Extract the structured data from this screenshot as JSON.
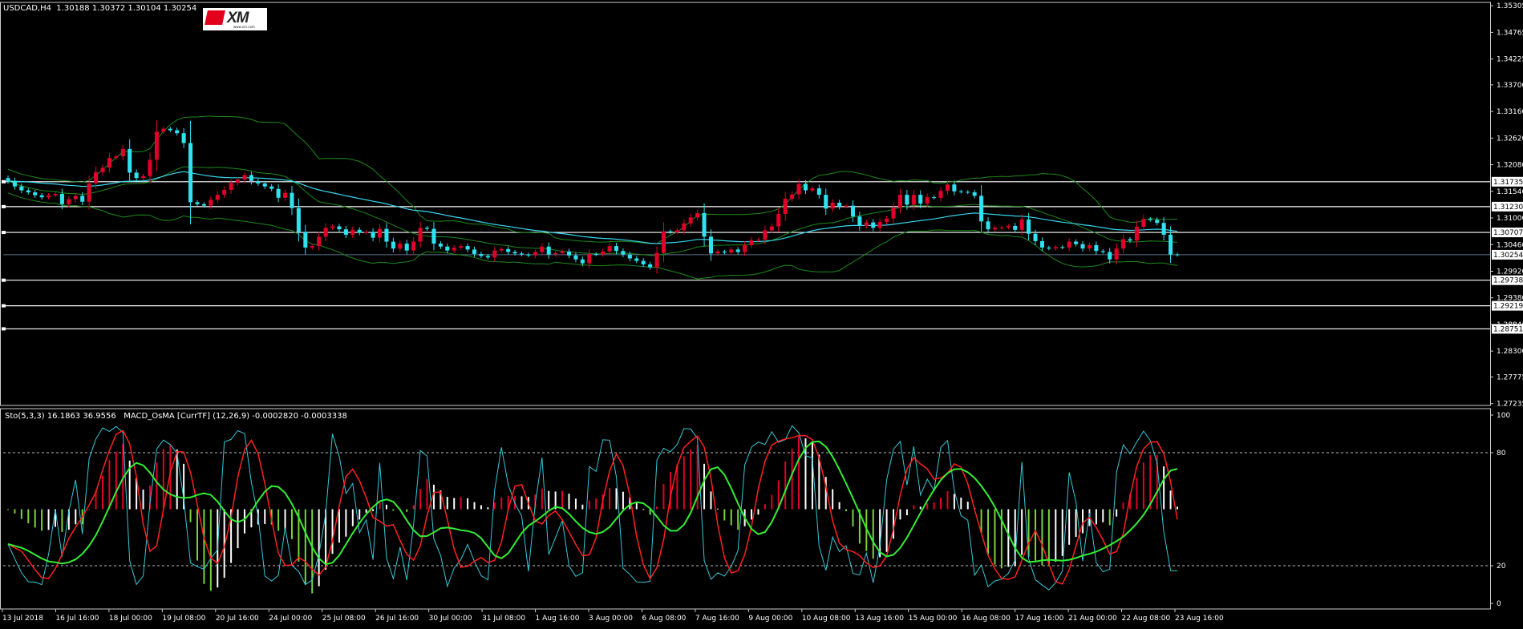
{
  "header": {
    "main_title": "USDCAD,H4  1.30188 1.30372 1.30104 1.30254",
    "sub_title": "Sto(5,3,3) 16.1863 36.9556   MACD_OsMA [CurrTF] (12,26,9) -0.0002820 -0.0003338",
    "logo_text": "XM",
    "logo_sub": "www.xm.com"
  },
  "colors": {
    "bull": "#e0002a",
    "bear": "#2fe2f0",
    "bollinger": "#1c8a1c",
    "ma": "#37d6ee",
    "hline": "#ffffff",
    "grid": "#777777",
    "stoch_main": "#37c8d8",
    "stoch_signal": "#ff2020",
    "osma_pos": "#e0002a",
    "osma_neg": "#7ad33a",
    "osma_neutral": "#ffffff",
    "macd_line": "#33ee33",
    "signal_red": "#ff2020"
  },
  "chart_data": [
    {
      "type": "candlestick",
      "symbol": "USDCAD",
      "timeframe": "H4",
      "ylim": [
        1.2723,
        1.3534
      ],
      "y_ticks": [
        "1.35305",
        "1.34765",
        "1.34225",
        "1.33700",
        "1.33160",
        "1.32620",
        "1.32080",
        "1.31540",
        "1.31000",
        "1.30460",
        "1.29920",
        "1.29380",
        "1.28840",
        "1.28300",
        "1.27775",
        "1.27235"
      ],
      "horizontal_levels": [
        "1.31735",
        "1.31230",
        "1.30707",
        "1.29738",
        "1.29219",
        "1.28751"
      ],
      "current_price": "1.30254",
      "x_ticks": [
        "13 Jul 2018",
        "16 Jul 16:00",
        "18 Jul 00:00",
        "19 Jul 08:00",
        "20 Jul 16:00",
        "24 Jul 00:00",
        "25 Jul 08:00",
        "26 Jul 16:00",
        "30 Jul 00:00",
        "31 Jul 08:00",
        "1 Aug 16:00",
        "3 Aug 00:00",
        "6 Aug 08:00",
        "7 Aug 16:00",
        "9 Aug 00:00",
        "10 Aug 08:00",
        "13 Aug 16:00",
        "15 Aug 00:00",
        "16 Aug 08:00",
        "17 Aug 16:00",
        "21 Aug 00:00",
        "22 Aug 08:00",
        "23 Aug 16:00"
      ],
      "close": [
        1.3175,
        1.3164,
        1.3156,
        1.3152,
        1.3146,
        1.3142,
        1.3146,
        1.3149,
        1.3128,
        1.3138,
        1.3145,
        1.3133,
        1.317,
        1.3193,
        1.3202,
        1.3222,
        1.3225,
        1.324,
        1.3192,
        1.3181,
        1.3185,
        1.3218,
        1.3275,
        1.3281,
        1.3278,
        1.3272,
        1.3252,
        1.3132,
        1.3128,
        1.3125,
        1.3137,
        1.3147,
        1.3157,
        1.3171,
        1.3178,
        1.3187,
        1.3175,
        1.317,
        1.3164,
        1.3159,
        1.3141,
        1.3151,
        1.312,
        1.3072,
        1.304,
        1.3043,
        1.3062,
        1.308,
        1.3083,
        1.3077,
        1.3066,
        1.3076,
        1.307,
        1.3072,
        1.306,
        1.3078,
        1.3052,
        1.3038,
        1.3048,
        1.3034,
        1.3052,
        1.308,
        1.3078,
        1.3048,
        1.3042,
        1.3034,
        1.304,
        1.3043,
        1.3036,
        1.3027,
        1.3023,
        1.302,
        1.3034,
        1.3037,
        1.3031,
        1.3028,
        1.3026,
        1.3024,
        1.3031,
        1.3042,
        1.3026,
        1.3029,
        1.3032,
        1.3024,
        1.3016,
        1.3008,
        1.3027,
        1.3026,
        1.3032,
        1.3043,
        1.3033,
        1.3026,
        1.3018,
        1.3013,
        1.3006,
        1.3,
        1.3029,
        1.3073,
        1.3071,
        1.3075,
        1.3089,
        1.3101,
        1.311,
        1.3062,
        1.3028,
        1.3032,
        1.303,
        1.3036,
        1.3031,
        1.3045,
        1.3055,
        1.3056,
        1.3075,
        1.3083,
        1.3108,
        1.3139,
        1.3148,
        1.3169,
        1.3156,
        1.316,
        1.3147,
        1.3119,
        1.3131,
        1.3123,
        1.3125,
        1.3103,
        1.3084,
        1.3091,
        1.308,
        1.3092,
        1.3099,
        1.3121,
        1.3147,
        1.3127,
        1.3147,
        1.3129,
        1.3142,
        1.3141,
        1.3155,
        1.3168,
        1.3154,
        1.3153,
        1.3152,
        1.3145,
        1.3093,
        1.3077,
        1.308,
        1.3081,
        1.3084,
        1.3076,
        1.3097,
        1.3068,
        1.3053,
        1.304,
        1.3038,
        1.3041,
        1.304,
        1.3052,
        1.3047,
        1.3038,
        1.3045,
        1.3033,
        1.3031,
        1.3016,
        1.3038,
        1.3057,
        1.3054,
        1.3082,
        1.3098,
        1.3096,
        1.309,
        1.3066,
        1.3026,
        1.3025
      ]
    },
    {
      "type": "line",
      "title": "Sto(5,3,3) 16.1863 36.9556",
      "ylim": [
        0,
        100
      ],
      "y_ticks": [
        "100",
        "80",
        "20",
        "0"
      ],
      "levels": [
        80,
        20
      ]
    },
    {
      "type": "bar",
      "title": "MACD_OsMA [CurrTF] (12,26,9) -0.0002820 -0.0003338"
    }
  ]
}
